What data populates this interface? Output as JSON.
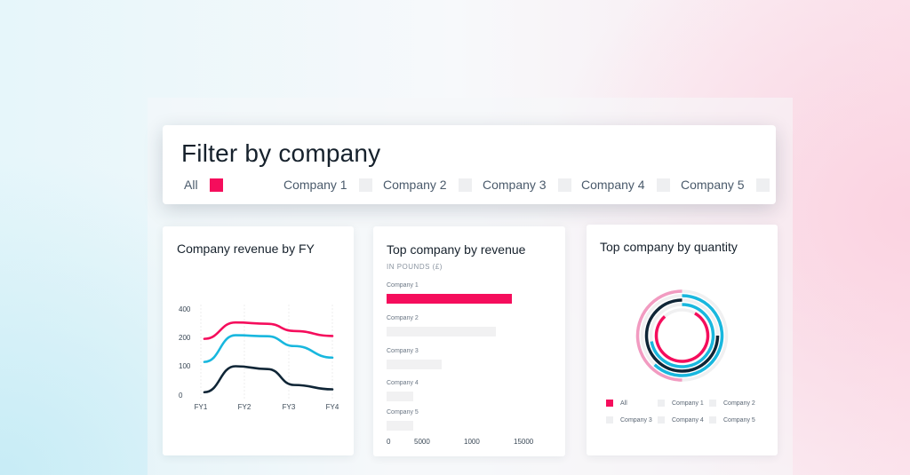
{
  "filter": {
    "title": "Filter by company",
    "options": [
      {
        "label": "All",
        "selected": true
      },
      {
        "label": "Company 1",
        "selected": false
      },
      {
        "label": "Company 2",
        "selected": false
      },
      {
        "label": "Company 3",
        "selected": false
      },
      {
        "label": "Company 4",
        "selected": false
      },
      {
        "label": "Company 5",
        "selected": false
      }
    ]
  },
  "colors": {
    "pink": "#f50d5c",
    "cyan": "#18b7de",
    "navy": "#0f2536",
    "bar_empty": "#f1f1f2",
    "track": "#f0f0f1"
  },
  "revenue_by_fy": {
    "title": "Company revenue by FY",
    "chart_data": {
      "type": "line",
      "x": [
        "FY1",
        "FY2",
        "FY3",
        "FY4"
      ],
      "yticks": [
        0,
        100,
        200,
        400
      ],
      "series": [
        {
          "color": "#f50d5c",
          "values": [
            195,
            305,
            245,
            210
          ]
        },
        {
          "color": "#18b7de",
          "values": [
            115,
            215,
            170,
            130
          ]
        },
        {
          "color": "#0f2536",
          "values": [
            10,
            100,
            35,
            20
          ]
        }
      ]
    }
  },
  "top_revenue": {
    "title": "Top company by revenue",
    "subtitle": "IN POUNDS (£)",
    "chart_data": {
      "type": "bar",
      "orientation": "horizontal",
      "categories": [
        "Company 1",
        "Company 2",
        "Company 3",
        "Company 4",
        "Company 5"
      ],
      "values": [
        14000,
        12200,
        6200,
        3000,
        3000
      ],
      "xtick_labels": [
        "0",
        "5000",
        "1000",
        "15000"
      ],
      "highlight": "Company 1"
    }
  },
  "top_quantity": {
    "title": "Top company by quantity",
    "chart_data": {
      "type": "radial",
      "rings": [
        {
          "color": "#f29bc1",
          "fraction": 0.5
        },
        {
          "color": "#18b7de",
          "fraction": 0.62
        },
        {
          "color": "#0f2536",
          "fraction": 0.75
        },
        {
          "color": "#18b7de",
          "fraction": 0.72
        },
        {
          "color": "#f50d5c",
          "fraction": 0.8
        }
      ]
    },
    "legend": [
      {
        "label": "All",
        "selected": true
      },
      {
        "label": "Company 1",
        "selected": false
      },
      {
        "label": "Company 2",
        "selected": false
      },
      {
        "label": "Company 3",
        "selected": false
      },
      {
        "label": "Company 4",
        "selected": false
      },
      {
        "label": "Company 5",
        "selected": false
      }
    ]
  }
}
